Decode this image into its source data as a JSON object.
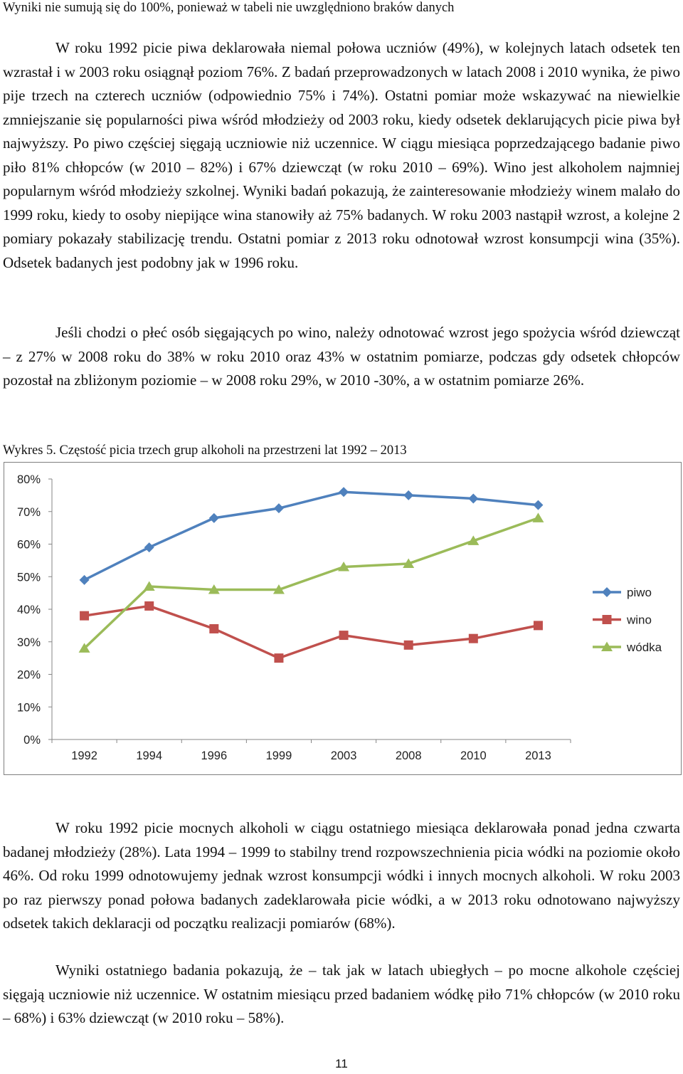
{
  "top_note": "Wyniki nie sumują się do 100%, ponieważ w tabeli nie uwzględniono braków danych",
  "paragraphs_top": [
    "W roku 1992 picie piwa deklarowała niemal połowa uczniów (49%), w kolejnych latach odsetek ten wzrastał i w 2003 roku osiągnął poziom 76%. Z badań przeprowadzonych w latach 2008 i 2010 wynika, że piwo pije trzech na czterech uczniów (odpowiednio 75% i 74%). Ostatni pomiar może wskazywać na niewielkie zmniejszanie się popularności piwa wśród młodzieży od 2003 roku, kiedy odsetek deklarujących picie piwa był najwyższy. Po piwo częściej sięgają uczniowie niż uczennice. W ciągu miesiąca poprzedzającego badanie piwo piło 81% chłopców (w 2010 – 82%) i 67% dziewcząt (w roku 2010 – 69%). Wino jest alkoholem najmniej popularnym wśród młodzieży szkolnej. Wyniki badań pokazują, że zainteresowanie młodzieży winem malało do 1999 roku, kiedy to osoby niepijące wina stanowiły aż 75% badanych. W roku 2003 nastąpił wzrost, a kolejne 2 pomiary pokazały stabilizację trendu. Ostatni pomiar z 2013 roku odnotował wzrost konsumpcji wina (35%). Odsetek badanych jest podobny jak w 1996 roku.",
    "Jeśli chodzi o płeć osób sięgających po wino, należy odnotować wzrost jego spożycia wśród dziewcząt – z 27% w 2008 roku do 38% w roku 2010 oraz 43% w ostatnim pomiarze, podczas gdy odsetek chłopców pozostał na zbliżonym poziomie – w 2008 roku 29%, w 2010 -30%, a w ostatnim pomiarze 26%."
  ],
  "caption": "Wykres 5. Częstość picia trzech grup alkoholi na przestrzeni lat 1992 – 2013",
  "chart_data": {
    "type": "line",
    "title": "",
    "xlabel": "",
    "ylabel": "",
    "categories": [
      "1992",
      "1994",
      "1996",
      "1999",
      "2003",
      "2008",
      "2010",
      "2013"
    ],
    "ylim": [
      0,
      80
    ],
    "yticks": [
      "0%",
      "10%",
      "20%",
      "30%",
      "40%",
      "50%",
      "60%",
      "70%",
      "80%"
    ],
    "grid": false,
    "legend_position": "right",
    "series": [
      {
        "name": "piwo",
        "values": [
          49,
          59,
          68,
          71,
          76,
          75,
          74,
          72
        ],
        "color": "#4f81bd",
        "marker": "diamond"
      },
      {
        "name": "wino",
        "values": [
          38,
          41,
          34,
          25,
          32,
          29,
          31,
          35
        ],
        "color": "#c0504d",
        "marker": "square"
      },
      {
        "name": "wódka",
        "values": [
          28,
          47,
          46,
          46,
          53,
          54,
          61,
          68
        ],
        "color": "#9bbb59",
        "marker": "triangle"
      }
    ]
  },
  "paragraphs_bottom": [
    "W roku 1992 picie mocnych alkoholi w ciągu ostatniego miesiąca deklarowała ponad jedna czwarta badanej młodzieży (28%). Lata 1994 – 1999 to stabilny trend rozpowszechnienia picia wódki na poziomie około 46%. Od roku 1999 odnotowujemy jednak wzrost konsumpcji wódki i innych mocnych alkoholi. W roku 2003 po raz pierwszy ponad połowa badanych zadeklarowała picie wódki, a w 2013 roku odnotowano najwyższy odsetek takich deklaracji od początku realizacji pomiarów (68%).",
    "Wyniki ostatniego badania pokazują, że – tak jak w latach ubiegłych – po mocne alkohole częściej sięgają uczniowie niż uczennice. W ostatnim miesiącu przed badaniem wódkę piło 71% chłopców (w 2010 roku – 68%) i 63% dziewcząt (w 2010 roku – 58%)."
  ],
  "page_number": "11"
}
